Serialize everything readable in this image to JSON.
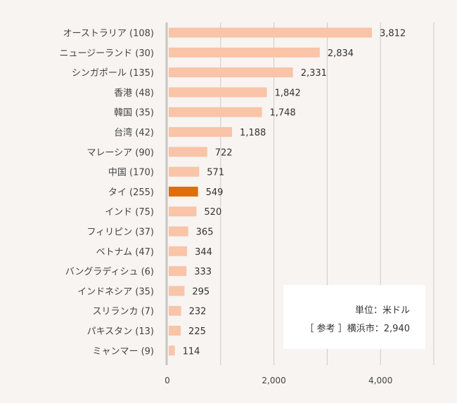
{
  "chart_data": {
    "type": "bar",
    "orientation": "horizontal",
    "categories": [
      "オーストラリア (108)",
      "ニュージーランド (30)",
      "シンガポール (135)",
      "香港 (48)",
      "韓国 (35)",
      "台湾 (42)",
      "マレーシア (90)",
      "中国 (170)",
      "タイ (255)",
      "インド (75)",
      "フィリピン (37)",
      "ベトナム (47)",
      "バングラディシュ (6)",
      "インドネシア (35)",
      "スリランカ (7)",
      "パキスタン (13)",
      "ミャンマー (9)"
    ],
    "values": [
      3812,
      2834,
      2331,
      1842,
      1748,
      1188,
      722,
      571,
      549,
      520,
      365,
      344,
      333,
      295,
      232,
      225,
      114
    ],
    "value_labels": [
      "3,812",
      "2,834",
      "2,331",
      "1,842",
      "1,748",
      "1,188",
      "722",
      "571",
      "549",
      "520",
      "365",
      "344",
      "333",
      "295",
      "232",
      "225",
      "114"
    ],
    "highlight_index": 8,
    "xlim": [
      0,
      5000
    ],
    "xticks": [
      0,
      2000,
      4000
    ],
    "xtick_labels": [
      "0",
      "2,000",
      "4,000"
    ],
    "gridlines": [
      1000,
      2000,
      3000,
      4000,
      5000
    ],
    "grid": true,
    "colors": {
      "bar": "#f9c4a8",
      "highlight": "#e36c0a",
      "grid": "#cfcac6",
      "axis": "#c8c4c0"
    }
  },
  "note": {
    "unit": "単位：米ドル",
    "reference": "［ 参考 ］横浜市：2,940"
  }
}
